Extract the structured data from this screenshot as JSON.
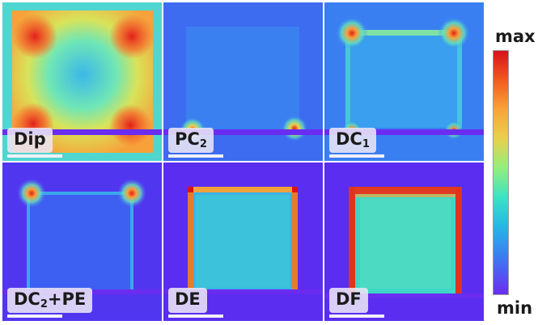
{
  "panels": [
    {
      "label": "Dip",
      "sub": "",
      "tail": ""
    },
    {
      "label": "PC",
      "sub": "2",
      "tail": ""
    },
    {
      "label": "DC",
      "sub": "1",
      "tail": ""
    },
    {
      "label": "DC",
      "sub": "2",
      "tail": "+PE"
    },
    {
      "label": "DE",
      "sub": "",
      "tail": ""
    },
    {
      "label": "DF",
      "sub": "",
      "tail": ""
    }
  ],
  "colorbar": {
    "max_label": "max",
    "min_label": "min"
  },
  "colors": {
    "background": "#5a2df0",
    "low": "#6a2cf0",
    "high": "#d9111b",
    "cyan": "#3ce3c4"
  }
}
